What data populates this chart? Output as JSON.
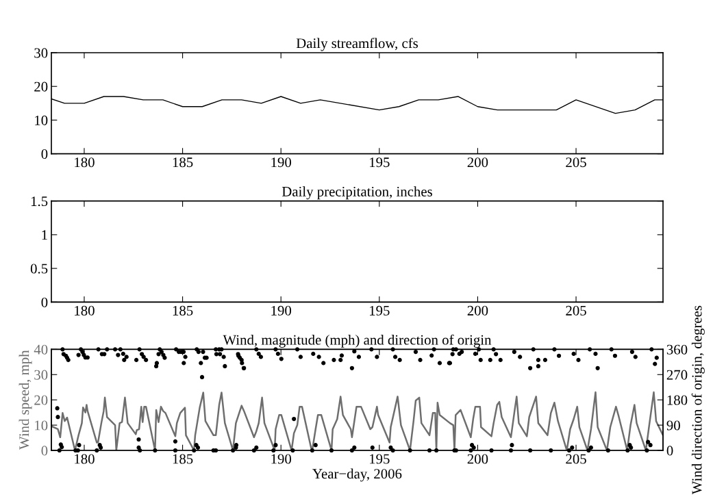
{
  "chart_data": [
    {
      "type": "line",
      "title": "Daily streamflow, cfs",
      "xlim": [
        178.33,
        209.42
      ],
      "xticks": [
        180,
        185,
        190,
        195,
        200,
        205
      ],
      "ylim": [
        0,
        30
      ],
      "yticks": [
        0,
        10,
        20,
        30
      ],
      "grid": false,
      "legend": false,
      "series": [
        {
          "color": "#000000",
          "x": [
            178.33,
            179,
            180,
            181,
            182,
            183,
            184,
            185,
            186,
            187,
            188,
            189,
            190,
            191,
            192,
            195,
            196,
            197,
            198,
            199,
            200,
            201,
            204,
            205,
            207,
            208,
            209,
            209.42
          ],
          "values": [
            16.3,
            15,
            15,
            17,
            17,
            16,
            16,
            14,
            14,
            16,
            16,
            15,
            17,
            15,
            16,
            13,
            14,
            16,
            16,
            17,
            14,
            13,
            13,
            16,
            12,
            13,
            16,
            16
          ]
        }
      ]
    },
    {
      "type": "line",
      "title": "Daily precipitation, inches",
      "xlim": [
        178.33,
        209.42
      ],
      "xticks": [
        180,
        185,
        190,
        195,
        200,
        205
      ],
      "ylim": [
        0,
        1.5
      ],
      "yticks": [
        0,
        0.5,
        1,
        1.5
      ],
      "grid": false,
      "legend": false,
      "series": [
        {
          "color": "#000000",
          "x": [
            178.33,
            180,
            185,
            190,
            195,
            200,
            205,
            209.42
          ],
          "values": [
            0,
            0,
            0,
            0,
            0,
            0,
            0,
            0
          ]
        }
      ]
    },
    {
      "type": "line",
      "title": "Wind, magnitude (mph) and direction of origin",
      "xlabel": "Year−day, 2006",
      "ylabel": "Wind speed, mph",
      "y2label": "Wind direction of origin, degrees",
      "xlim": [
        178.33,
        209.42
      ],
      "xticks": [
        180,
        185,
        190,
        195,
        200,
        205
      ],
      "ylim": [
        0,
        40
      ],
      "yticks": [
        0,
        10,
        20,
        30,
        40
      ],
      "y2lim": [
        0,
        360
      ],
      "y2ticks": [
        0,
        90,
        180,
        270,
        360
      ],
      "grid": false,
      "legend": false,
      "series": [
        {
          "type": "line",
          "axis": "y",
          "color": "#6e6e6e",
          "x": [
            178.33,
            178.66,
            178.78,
            178.9,
            179.01,
            179.13,
            179.53,
            179.71,
            179.88,
            179.94,
            180.06,
            180.12,
            180.17,
            180.64,
            180.7,
            180.87,
            180.99,
            181.05,
            181.16,
            181.57,
            181.63,
            181.8,
            181.92,
            182.07,
            182.21,
            182.62,
            182.67,
            182.79,
            182.9,
            182.97,
            183.05,
            183.14,
            183.6,
            183.66,
            183.78,
            183.9,
            184.01,
            184.13,
            184.63,
            184.71,
            184.88,
            185.12,
            185.17,
            185.58,
            185.64,
            185.87,
            186.05,
            186.16,
            186.57,
            186.69,
            186.86,
            186.98,
            187.15,
            187.56,
            187.71,
            188.0,
            188.12,
            188.63,
            188.75,
            188.87,
            189.04,
            189.16,
            189.68,
            189.73,
            189.91,
            190.02,
            190.54,
            190.66,
            190.83,
            190.95,
            191.07,
            191.53,
            191.59,
            191.76,
            191.88,
            192.05,
            192.57,
            192.63,
            192.86,
            193.03,
            193.15,
            193.55,
            193.61,
            193.84,
            194.07,
            194.54,
            194.65,
            194.88,
            194.94,
            195.52,
            195.58,
            195.93,
            196.1,
            196.56,
            196.74,
            196.85,
            197.03,
            197.14,
            197.55,
            197.72,
            197.84,
            197.9,
            197.96,
            198.07,
            198.59,
            198.76,
            198.82,
            198.88,
            199.13,
            199.65,
            199.77,
            199.88,
            200.12,
            200.17,
            200.7,
            200.81,
            200.99,
            201.1,
            201.22,
            201.69,
            201.86,
            201.98,
            202.09,
            202.5,
            202.62,
            202.97,
            203.08,
            203.55,
            203.72,
            203.9,
            204.08,
            204.53,
            204.7,
            204.88,
            205.06,
            205.17,
            205.58,
            205.76,
            205.99,
            206.1,
            206.57,
            206.74,
            207.03,
            207.15,
            207.6,
            207.77,
            207.97,
            208.08,
            208.55,
            208.72,
            208.95,
            209.07,
            209.42
          ],
          "values": [
            9.6,
            8.4,
            5.2,
            14.8,
            11.6,
            13.0,
            0,
            6.0,
            10.8,
            17.0,
            15.0,
            18.0,
            15.6,
            3.1,
            3.1,
            10.8,
            15.6,
            20.9,
            13.2,
            10.0,
            0,
            10.8,
            11.2,
            20.9,
            10.8,
            6.4,
            8.0,
            8.4,
            17.3,
            11.2,
            17.3,
            17.3,
            0,
            16.0,
            11.2,
            17.3,
            15.6,
            14.8,
            5.6,
            10.8,
            14.8,
            16.9,
            6.0,
            0,
            6.0,
            16.9,
            22.9,
            11.6,
            6.0,
            6.0,
            18.0,
            22.9,
            10.8,
            0,
            10.8,
            17.7,
            15.6,
            5.2,
            7.6,
            10.8,
            20.9,
            10.8,
            0,
            8.4,
            14.0,
            14.0,
            0,
            6.8,
            10.0,
            17.3,
            17.3,
            1.1,
            0,
            8.4,
            14.0,
            14.0,
            0,
            8.4,
            12.4,
            21.3,
            14.0,
            8.4,
            5.2,
            17.3,
            17.3,
            8.4,
            9.2,
            17.3,
            14.0,
            3.1,
            9.2,
            21.3,
            10.0,
            0,
            11.6,
            19.7,
            20.9,
            10.8,
            6.0,
            14.8,
            14.8,
            0,
            18.9,
            14.0,
            10.8,
            10.0,
            0,
            14.0,
            16.0,
            5.2,
            12.4,
            17.3,
            17.3,
            9.2,
            5.6,
            10.8,
            18.0,
            19.2,
            13.2,
            5.2,
            14.8,
            21.3,
            10.8,
            5.6,
            13.2,
            21.3,
            10.8,
            6.0,
            14.8,
            18.9,
            11.6,
            0,
            8.4,
            12.4,
            17.3,
            9.2,
            0,
            8.4,
            23.0,
            9.2,
            0,
            9.2,
            17.3,
            14.0,
            0,
            10.0,
            18.0,
            10.8,
            0,
            10.0,
            23.0,
            11.6,
            6.0
          ]
        },
        {
          "type": "scatter",
          "axis": "y2",
          "color": "#000000",
          "marker": "circle",
          "x": [
            178.63,
            178.66,
            178.74,
            178.81,
            178.86,
            178.9,
            178.95,
            179.07,
            179.13,
            179.19,
            179.56,
            179.68,
            179.71,
            179.74,
            179.83,
            179.91,
            179.98,
            180.06,
            180.17,
            180.64,
            180.72,
            180.79,
            180.84,
            180.9,
            181.02,
            181.16,
            181.57,
            181.72,
            181.84,
            181.98,
            182.03,
            182.15,
            182.65,
            182.77,
            182.77,
            182.81,
            182.83,
            182.93,
            183.02,
            183.14,
            183.6,
            183.66,
            183.69,
            183.78,
            183.84,
            183.93,
            184.02,
            184.09,
            184.63,
            184.63,
            184.67,
            184.81,
            184.93,
            185.05,
            185.06,
            185.14,
            185.58,
            185.7,
            185.72,
            185.78,
            185.81,
            185.93,
            185.99,
            186.04,
            186.13,
            186.22,
            186.57,
            186.69,
            186.69,
            186.72,
            186.86,
            186.9,
            186.98,
            187.09,
            187.15,
            187.56,
            187.71,
            187.73,
            187.82,
            187.84,
            187.91,
            188.0,
            188.02,
            188.11,
            188.12,
            188.63,
            188.75,
            188.75,
            188.87,
            188.98,
            189.62,
            189.73,
            189.73,
            189.85,
            190.02,
            190.6,
            190.66,
            190.83,
            191.0,
            191.59,
            191.64,
            191.76,
            191.93,
            192.16,
            192.57,
            192.69,
            193.03,
            193.09,
            193.61,
            193.61,
            193.73,
            193.73,
            193.96,
            194.6,
            194.65,
            194.88,
            195.58,
            195.69,
            195.69,
            195.81,
            196.04,
            196.56,
            196.85,
            197.08,
            197.55,
            197.66,
            197.78,
            197.9,
            198.07,
            198.55,
            198.59,
            198.72,
            198.76,
            198.82,
            198.9,
            198.9,
            199.07,
            199.19,
            199.65,
            199.71,
            199.8,
            199.88,
            200.06,
            200.15,
            200.64,
            200.7,
            200.81,
            200.93,
            201.16,
            201.69,
            201.74,
            201.86,
            202.15,
            202.67,
            202.67,
            202.83,
            203.08,
            203.08,
            203.43,
            203.72,
            203.9,
            204.13,
            204.65,
            204.8,
            204.88,
            205.12,
            205.64,
            205.7,
            205.76,
            205.99,
            206.1,
            206.63,
            206.8,
            206.98,
            207.62,
            207.73,
            207.79,
            207.85,
            208.02,
            208.6,
            208.66,
            208.78,
            208.84,
            209.01,
            209.1
          ],
          "values": [
            150,
            119,
            0,
            21,
            12,
            360,
            343,
            337,
            330,
            322,
            0,
            0,
            340,
            19,
            360,
            351,
            340,
            331,
            331,
            0,
            360,
            19,
            10,
            343,
            343,
            360,
            360,
            340,
            360,
            344,
            322,
            333,
            322,
            39,
            10,
            360,
            0,
            343,
            333,
            322,
            0,
            300,
            311,
            343,
            360,
            351,
            340,
            330,
            32,
            0,
            360,
            351,
            351,
            351,
            311,
            333,
            0,
            19,
            360,
            10,
            351,
            311,
            261,
            351,
            330,
            330,
            0,
            360,
            0,
            343,
            360,
            343,
            360,
            333,
            300,
            0,
            10,
            19,
            343,
            337,
            330,
            322,
            311,
            293,
            293,
            0,
            360,
            10,
            344,
            333,
            0,
            360,
            19,
            344,
            326,
            0,
            112,
            360,
            333,
            0,
            344,
            19,
            333,
            311,
            0,
            322,
            322,
            338,
            0,
            293,
            353,
            10,
            333,
            360,
            10,
            333,
            10,
            360,
            0,
            333,
            322,
            0,
            351,
            322,
            0,
            338,
            360,
            0,
            311,
            311,
            311,
            343,
            360,
            0,
            360,
            0,
            344,
            351,
            0,
            19,
            10,
            344,
            360,
            322,
            322,
            0,
            360,
            343,
            322,
            0,
            19,
            351,
            333,
            293,
            0,
            360,
            322,
            300,
            322,
            0,
            360,
            337,
            0,
            10,
            344,
            322,
            0,
            360,
            10,
            344,
            293,
            0,
            360,
            337,
            0,
            19,
            10,
            351,
            333,
            0,
            30,
            19,
            360,
            308,
            330
          ]
        }
      ]
    }
  ]
}
